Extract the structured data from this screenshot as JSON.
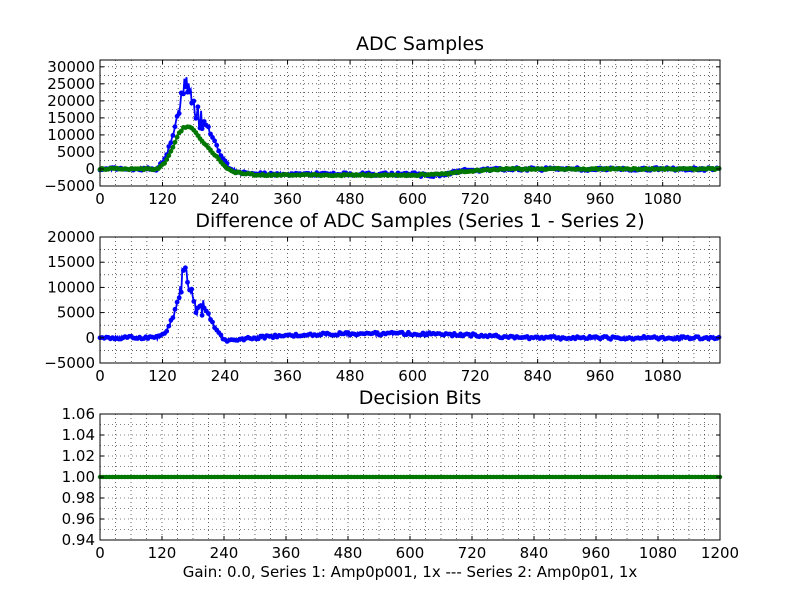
{
  "figure": {
    "xlabel": "Gain: 0.0, Series 1: Amp0p001, 1x --- Series 2: Amp0p01, 1x"
  },
  "chart_data": [
    {
      "type": "line",
      "title": "ADC Samples",
      "xlabel": "",
      "ylabel": "",
      "xlim": [
        0,
        1190
      ],
      "ylim": [
        -5000,
        32000
      ],
      "x_ticks": [
        0,
        120,
        240,
        360,
        480,
        600,
        720,
        840,
        960,
        1080
      ],
      "y_ticks": [
        -5000,
        0,
        5000,
        10000,
        15000,
        20000,
        25000,
        30000
      ],
      "x_tick_labels": [
        "0",
        "120",
        "240",
        "360",
        "480",
        "600",
        "720",
        "840",
        "960",
        "1080"
      ],
      "y_tick_labels": [
        "−5000",
        "0",
        "5000",
        "10000",
        "15000",
        "20000",
        "25000",
        "30000"
      ],
      "grid": true,
      "legend": "none",
      "series": [
        {
          "color": "#0000ff",
          "marker": "dot",
          "x": [
            0,
            60,
            110,
            125,
            140,
            150,
            158,
            165,
            172,
            180,
            190,
            205,
            220,
            235,
            250,
            270,
            300,
            360,
            480,
            540,
            600,
            630,
            660,
            700,
            780,
            840,
            960,
            1080,
            1190
          ],
          "y": [
            0,
            0,
            0,
            3000,
            10000,
            17000,
            23000,
            27500,
            24000,
            17000,
            15500,
            13000,
            8000,
            3000,
            0,
            -1000,
            -1500,
            -1500,
            -1500,
            -1500,
            -1500,
            -2000,
            -1500,
            -500,
            0,
            0,
            0,
            0,
            0
          ]
        },
        {
          "color": "#007700",
          "marker": "dot",
          "x": [
            0,
            60,
            110,
            125,
            140,
            150,
            160,
            168,
            175,
            185,
            200,
            215,
            230,
            245,
            260,
            300,
            360,
            480,
            600,
            660,
            720,
            780,
            840,
            960,
            1080,
            1190
          ],
          "y": [
            0,
            0,
            0,
            2000,
            6500,
            10000,
            12000,
            12500,
            12000,
            10500,
            7500,
            5000,
            2500,
            0,
            -1000,
            -1800,
            -1800,
            -1800,
            -1800,
            -1500,
            -500,
            0,
            0,
            0,
            0,
            0
          ]
        }
      ]
    },
    {
      "type": "line",
      "title": "Difference of ADC Samples (Series 1 - Series 2)",
      "xlabel": "",
      "ylabel": "",
      "xlim": [
        0,
        1190
      ],
      "ylim": [
        -5000,
        20000
      ],
      "x_ticks": [
        0,
        120,
        240,
        360,
        480,
        600,
        720,
        840,
        960,
        1080
      ],
      "y_ticks": [
        -5000,
        0,
        5000,
        10000,
        15000,
        20000
      ],
      "x_tick_labels": [
        "0",
        "120",
        "240",
        "360",
        "480",
        "600",
        "720",
        "840",
        "960",
        "1080"
      ],
      "y_tick_labels": [
        "−5000",
        "0",
        "5000",
        "10000",
        "15000",
        "20000"
      ],
      "grid": true,
      "legend": "none",
      "series": [
        {
          "color": "#0000ff",
          "marker": "dot",
          "x": [
            0,
            60,
            110,
            125,
            140,
            150,
            158,
            165,
            172,
            180,
            190,
            205,
            220,
            240,
            300,
            360,
            480,
            540,
            600,
            660,
            720,
            840,
            960,
            1080,
            1190
          ],
          "y": [
            0,
            0,
            0,
            1000,
            4000,
            7500,
            12000,
            16000,
            10000,
            6000,
            6500,
            5500,
            2000,
            -500,
            0,
            500,
            800,
            800,
            800,
            700,
            500,
            0,
            0,
            0,
            0
          ]
        }
      ]
    },
    {
      "type": "line",
      "title": "Decision Bits",
      "xlabel": "Gain: 0.0, Series 1: Amp0p001, 1x --- Series 2: Amp0p01, 1x",
      "ylabel": "",
      "xlim": [
        0,
        1200
      ],
      "ylim": [
        0.94,
        1.06
      ],
      "x_ticks": [
        0,
        120,
        240,
        360,
        480,
        600,
        720,
        840,
        960,
        1080,
        1200
      ],
      "y_ticks": [
        0.94,
        0.96,
        0.98,
        1.0,
        1.02,
        1.04,
        1.06
      ],
      "x_tick_labels": [
        "0",
        "120",
        "240",
        "360",
        "480",
        "600",
        "720",
        "840",
        "960",
        "1080",
        "1200"
      ],
      "y_tick_labels": [
        "0.94",
        "0.96",
        "0.98",
        "1.00",
        "1.02",
        "1.04",
        "1.06"
      ],
      "grid": true,
      "legend": "none",
      "series": [
        {
          "color": "#007700",
          "marker": "dot",
          "x": [
            0,
            1200
          ],
          "y": [
            1.0,
            1.0
          ]
        }
      ]
    }
  ]
}
